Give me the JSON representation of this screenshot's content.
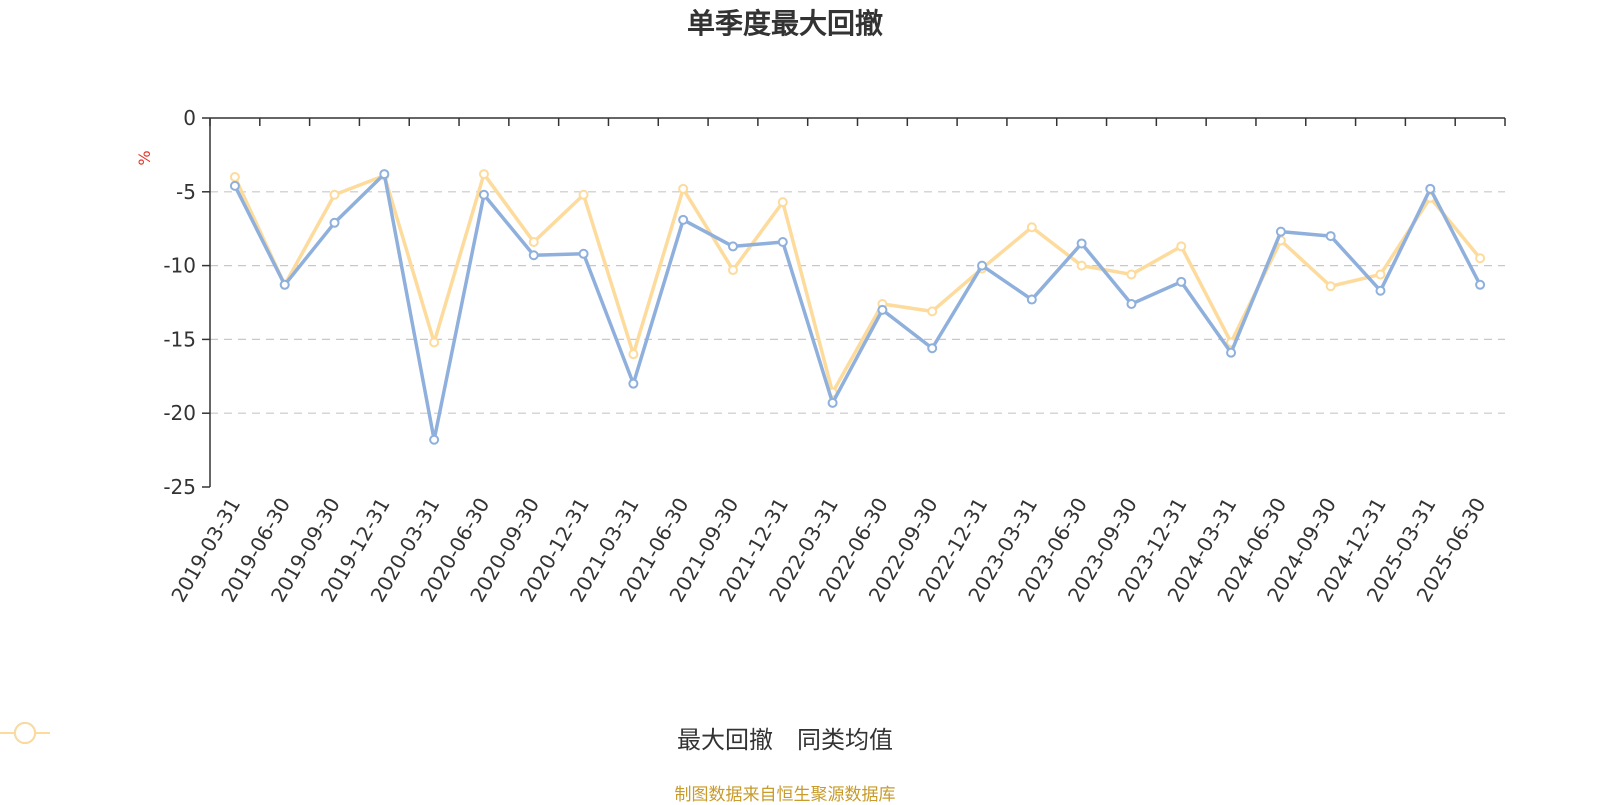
{
  "chart_data": {
    "type": "line",
    "title": "单季度最大回撤",
    "ylabel": "%",
    "ylim": [
      -25,
      0
    ],
    "yticks": [
      0,
      -5,
      -10,
      -15,
      -20,
      -25
    ],
    "grid": "horizontal-dashed",
    "legend_position": "bottom-center",
    "categories": [
      "2019-03-31",
      "2019-06-30",
      "2019-09-30",
      "2019-12-31",
      "2020-03-31",
      "2020-06-30",
      "2020-09-30",
      "2020-12-31",
      "2021-03-31",
      "2021-06-30",
      "2021-09-30",
      "2021-12-31",
      "2022-03-31",
      "2022-06-30",
      "2022-09-30",
      "2022-12-31",
      "2023-03-31",
      "2023-06-30",
      "2023-09-30",
      "2023-12-31",
      "2024-03-31",
      "2024-06-30",
      "2024-09-30",
      "2024-12-31",
      "2025-03-31",
      "2025-06-30"
    ],
    "series": [
      {
        "name": "最大回撤",
        "color": "#8fb0dc",
        "values": [
          -4.6,
          -11.3,
          -7.1,
          -3.8,
          -21.8,
          -5.2,
          -9.3,
          -9.2,
          -18.0,
          -6.9,
          -8.7,
          -8.4,
          -19.3,
          -13.0,
          -15.6,
          -10.0,
          -12.3,
          -8.5,
          -12.6,
          -11.1,
          -15.9,
          -7.7,
          -8.0,
          -11.7,
          -4.8,
          -11.3
        ]
      },
      {
        "name": "同类均值",
        "color": "#fddb9c",
        "values": [
          -4.0,
          -11.3,
          -5.2,
          -3.9,
          -15.2,
          -3.8,
          -8.4,
          -5.2,
          -16.0,
          -4.8,
          -10.3,
          -5.7,
          -18.6,
          -12.6,
          -13.1,
          -10.2,
          -7.4,
          -10.0,
          -10.6,
          -8.7,
          -15.2,
          -8.3,
          -11.4,
          -10.6,
          -5.4,
          -9.5
        ]
      }
    ]
  },
  "source_text": "制图数据来自恒生聚源数据库"
}
